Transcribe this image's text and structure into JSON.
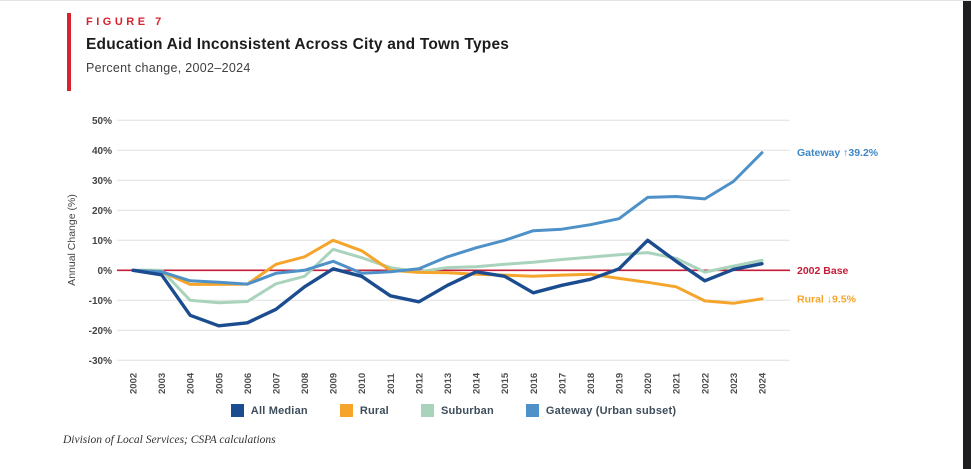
{
  "page": {
    "figure_label": "FIGURE 7",
    "title": "Education Aid Inconsistent Across City and Town Types",
    "subtitle": "Percent change, 2002–2024",
    "source_note": "Division of Local Services; CSPA calculations",
    "accent_color": "#d7232e"
  },
  "chart_data": {
    "type": "line",
    "title": "Education Aid Inconsistent Across City and Town Types",
    "subtitle": "Percent change, 2002–2024",
    "xlabel": "",
    "ylabel": "Annual Change (%)",
    "ylim": [
      -30,
      50
    ],
    "ytick_step": 10,
    "ytick_suffix": "%",
    "grid": true,
    "legend_position": "bottom",
    "x": [
      "2002",
      "2003",
      "2004",
      "2005",
      "2006",
      "2007",
      "2008",
      "2009",
      "2010",
      "2011",
      "2012",
      "2013",
      "2014",
      "2015",
      "2016",
      "2017",
      "2018",
      "2019",
      "2020",
      "2021",
      "2022",
      "2023",
      "2024"
    ],
    "series": [
      {
        "name": "All Median",
        "color": "#1b4c8f",
        "values": [
          0,
          -1.5,
          -15,
          -18.5,
          -17.5,
          -13,
          -5.5,
          0.5,
          -2,
          -8.5,
          -10.5,
          -5,
          -0.5,
          -2,
          -7.5,
          -5,
          -3,
          0.5,
          10,
          3,
          -3.5,
          0.3,
          2.2
        ]
      },
      {
        "name": "Rural",
        "color": "#f5a52c",
        "values": [
          0,
          -0.5,
          -4.7,
          -4.7,
          -4.6,
          2,
          4.5,
          10,
          6.5,
          0,
          -0.7,
          -0.8,
          -1.3,
          -1.6,
          -2,
          -1.6,
          -1.3,
          -2.7,
          -4,
          -5.5,
          -10.2,
          -11,
          -9.5
        ]
      },
      {
        "name": "Suburban",
        "color": "#a9d3bc",
        "values": [
          0,
          0,
          -10,
          -10.8,
          -10.4,
          -4.5,
          -2,
          7,
          4.2,
          0.9,
          -0.5,
          0.9,
          1.2,
          2,
          2.7,
          3.6,
          4.4,
          5.2,
          5.9,
          4,
          -0.6,
          1.4,
          3.3
        ]
      },
      {
        "name": "Gateway (Urban subset)",
        "color": "#4e91c8",
        "values": [
          0,
          -0.5,
          -3.5,
          -4,
          -4.6,
          -1,
          0,
          3,
          -1,
          -0.5,
          0.5,
          4.5,
          7.5,
          10,
          13.2,
          13.7,
          15.2,
          17.2,
          24.3,
          24.6,
          23.8,
          29.6,
          39.2
        ]
      }
    ],
    "baseline": {
      "value": 0,
      "color": "#c41d38"
    },
    "annotations": [
      {
        "text": "Gateway ↑39.2%",
        "value": 39.2,
        "color": "#3e87c7"
      },
      {
        "text": "2002 Base",
        "value": 0,
        "color": "#c41d38"
      },
      {
        "text": "Rural ↓9.5%",
        "value": -9.5,
        "color": "#f5a52c"
      }
    ]
  }
}
